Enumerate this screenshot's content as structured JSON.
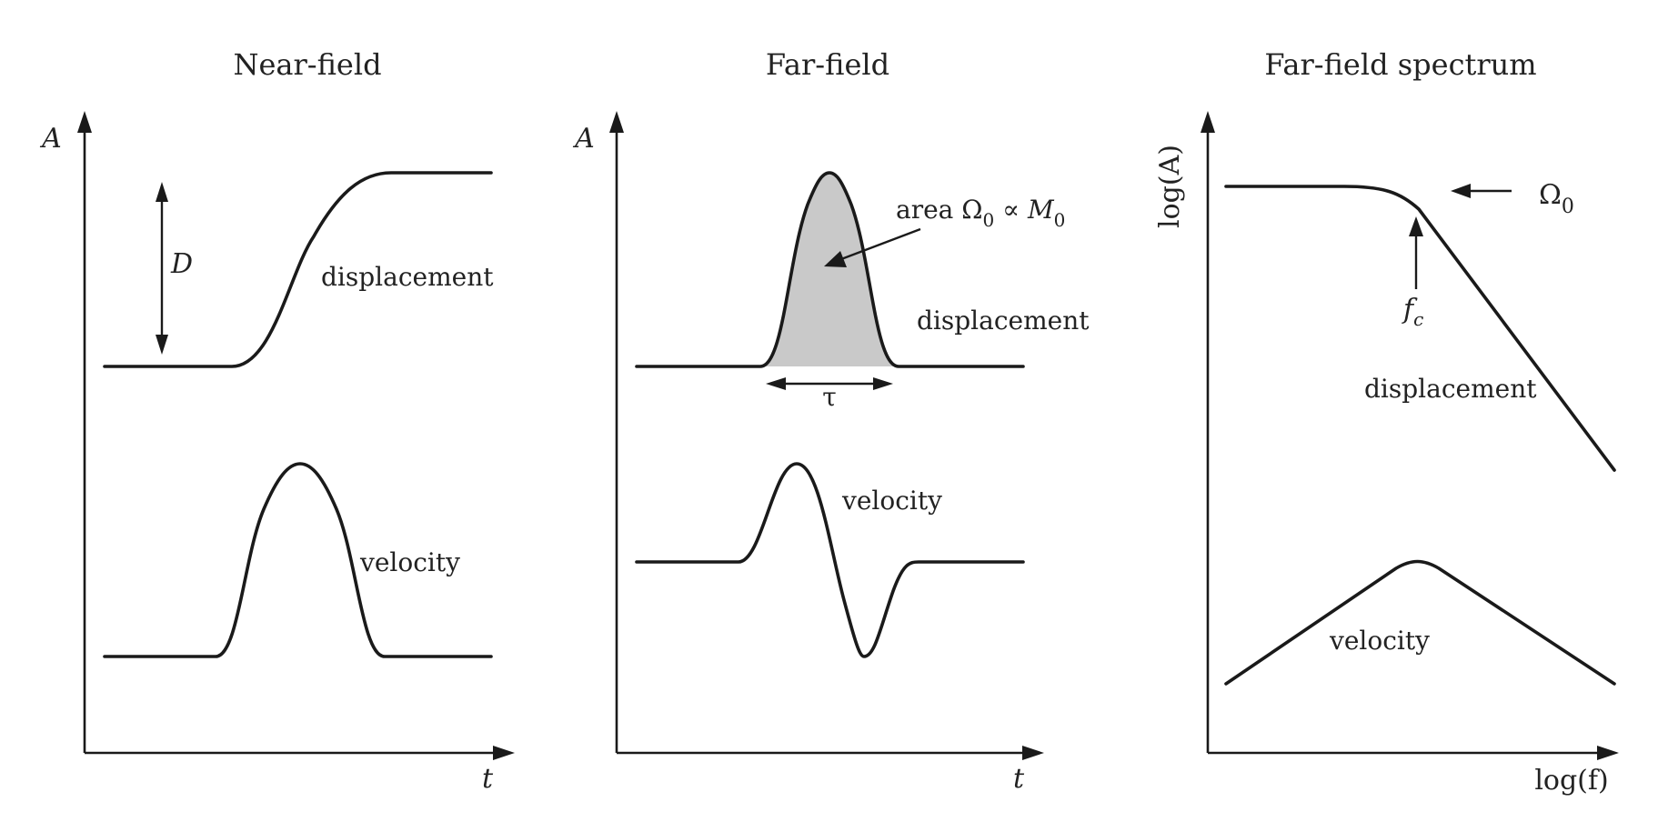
{
  "panels": [
    {
      "title": "Near-field",
      "y_axis": "A",
      "x_axis": "t",
      "curves": [
        "displacement",
        "velocity"
      ],
      "annotation": "D"
    },
    {
      "title": "Far-field",
      "y_axis": "A",
      "x_axis": "t",
      "curves": [
        "displacement",
        "velocity"
      ],
      "area_label": {
        "text": "area Ω",
        "sub": "0",
        "mid": " ∝ M",
        "sub2": "0"
      },
      "duration_label": "τ"
    },
    {
      "title": "Far-field spectrum",
      "y_axis": "log(A)",
      "x_axis": "log(f)",
      "curves": [
        "displacement",
        "velocity"
      ],
      "corner_label": {
        "base": "f",
        "sub": "c"
      },
      "plateau_label": {
        "base": "Ω",
        "sub": "0"
      }
    }
  ],
  "colors": {
    "ink": "#1a1a1a",
    "fill": "#c9c9c9",
    "background": "#ffffff"
  }
}
